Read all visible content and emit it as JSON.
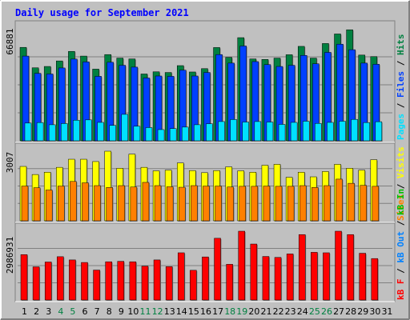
{
  "title": "Daily usage for September 2021",
  "colors": {
    "frame_bg": "#c0c0c0",
    "title": "#0000ff",
    "hits": "#008040",
    "files": "#0040ff",
    "pages": "#00e0ff",
    "visits": "#ffff00",
    "sites": "#ff8000",
    "kbin": "#00c000",
    "kbout": "#0080ff",
    "kbf": "#ff0000",
    "weekend_label": "#008040",
    "day_label": "#000000"
  },
  "right_labels": {
    "top": [
      {
        "text": "Pages",
        "color": "#00e0ff"
      },
      {
        "text": "Files",
        "color": "#0040ff"
      },
      {
        "text": "Hits",
        "color": "#008040"
      }
    ],
    "middle": [
      {
        "text": "Sites",
        "color": "#ff8000"
      },
      {
        "text": "Visits",
        "color": "#ffff00"
      }
    ],
    "bottom": [
      {
        "text": "kB F",
        "color": "#ff0000"
      },
      {
        "text": "kB Out",
        "color": "#0080ff"
      },
      {
        "text": "kB In",
        "color": "#00c000"
      }
    ]
  },
  "chart_data": [
    {
      "type": "bar",
      "panel": "hits-files-pages",
      "ymax_label": "66881",
      "ylim": [
        0,
        66881
      ],
      "categories": [
        "1",
        "2",
        "3",
        "4",
        "5",
        "6",
        "7",
        "8",
        "9",
        "10",
        "11",
        "12",
        "13",
        "14",
        "15",
        "16",
        "17",
        "18",
        "19",
        "20",
        "21",
        "22",
        "23",
        "24",
        "25",
        "26",
        "27",
        "28",
        "29",
        "30",
        "31"
      ],
      "weekend_days": [
        4,
        5,
        11,
        12,
        18,
        19,
        25,
        26
      ],
      "series": [
        {
          "name": "Hits",
          "color": "#008040",
          "values": [
            55800,
            43600,
            44400,
            47700,
            53400,
            50600,
            42800,
            51500,
            49400,
            48900,
            39900,
            41200,
            40800,
            44900,
            41100,
            43100,
            55700,
            49800,
            61600,
            48900,
            48600,
            49400,
            51400,
            56400,
            49400,
            58100,
            63800,
            66300,
            51200,
            50300,
            0
          ]
        },
        {
          "name": "Files",
          "color": "#0040ff",
          "values": [
            50600,
            40300,
            39900,
            43500,
            48800,
            47100,
            38500,
            46900,
            45100,
            44000,
            37500,
            38700,
            38500,
            42200,
            38700,
            40800,
            51500,
            46400,
            56600,
            47300,
            45500,
            44400,
            45100,
            51000,
            46000,
            52800,
            57700,
            54400,
            46400,
            45700,
            0
          ]
        },
        {
          "name": "Pages",
          "color": "#00e0ff",
          "values": [
            10600,
            10900,
            9600,
            10300,
            12300,
            12500,
            11000,
            9200,
            15800,
            8700,
            7900,
            6700,
            7300,
            8200,
            9600,
            10200,
            11500,
            12700,
            11200,
            11500,
            11200,
            9800,
            11000,
            11700,
            10400,
            11000,
            11700,
            12800,
            10900,
            11400,
            0
          ]
        }
      ]
    },
    {
      "type": "bar",
      "panel": "visits-sites",
      "ymax_label": "3007",
      "ylim": [
        0,
        3007
      ],
      "series": [
        {
          "name": "Visits",
          "color": "#ffff00",
          "values": [
            2350,
            2000,
            2100,
            2310,
            2660,
            2660,
            2560,
            3007,
            2270,
            2880,
            2310,
            2160,
            2190,
            2500,
            2170,
            2080,
            2170,
            2330,
            2160,
            2100,
            2400,
            2440,
            1880,
            2100,
            1900,
            2130,
            2440,
            2270,
            2190,
            2640,
            0
          ]
        },
        {
          "name": "Sites",
          "color": "#ff8000",
          "values": [
            1500,
            1430,
            1330,
            1500,
            1700,
            1640,
            1520,
            1440,
            1520,
            1460,
            1660,
            1520,
            1470,
            1450,
            1520,
            1500,
            1500,
            1460,
            1490,
            1490,
            1500,
            1490,
            1490,
            1520,
            1440,
            1520,
            1800,
            1620,
            1530,
            1490,
            0
          ]
        }
      ]
    },
    {
      "type": "bar",
      "panel": "kbf",
      "ymax_label": "2986931",
      "ylim": [
        0,
        2986931
      ],
      "series": [
        {
          "name": "kB F",
          "color": "#ff0000",
          "values": [
            1970000,
            1440000,
            1650000,
            1880000,
            1740000,
            1630000,
            1300000,
            1660000,
            1680000,
            1660000,
            1470000,
            1740000,
            1450000,
            2050000,
            1290000,
            1870000,
            2680000,
            1550000,
            2986931,
            2430000,
            1890000,
            1850000,
            2000000,
            2840000,
            2070000,
            2050000,
            3010000,
            2840000,
            2030000,
            1800000,
            0
          ]
        }
      ]
    }
  ]
}
